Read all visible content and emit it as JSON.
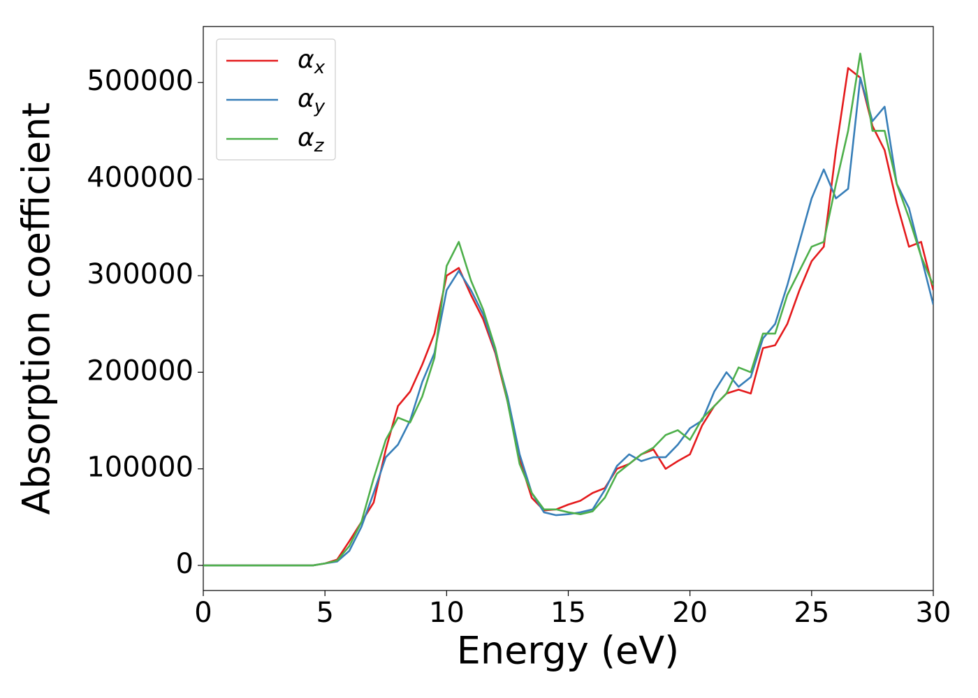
{
  "chart_data": {
    "type": "line",
    "xlabel": "Energy (eV)",
    "ylabel": "Absorption coefficient",
    "x": [
      0,
      0.5,
      1,
      1.5,
      2,
      2.5,
      3,
      3.5,
      4,
      4.5,
      5,
      5.5,
      6,
      6.5,
      7,
      7.5,
      8,
      8.5,
      9,
      9.5,
      10,
      10.5,
      11,
      11.5,
      12,
      12.5,
      13,
      13.5,
      14,
      14.5,
      15,
      15.5,
      16,
      16.5,
      17,
      17.5,
      18,
      18.5,
      19,
      19.5,
      20,
      20.5,
      21,
      21.5,
      22,
      22.5,
      23,
      23.5,
      24,
      24.5,
      25,
      25.5,
      26,
      26.5,
      27,
      27.5,
      28,
      28.5,
      29,
      29.5,
      30
    ],
    "series": [
      {
        "name": "αx",
        "color": "#e41a1c",
        "values": [
          0,
          0,
          0,
          0,
          0,
          0,
          0,
          0,
          0,
          0,
          2000,
          6000,
          25000,
          45000,
          65000,
          120000,
          165000,
          180000,
          208000,
          240000,
          300000,
          308000,
          280000,
          255000,
          220000,
          170000,
          110000,
          70000,
          57000,
          58000,
          63000,
          67000,
          75000,
          80000,
          100000,
          105000,
          115000,
          120000,
          100000,
          108000,
          115000,
          145000,
          165000,
          178000,
          182000,
          178000,
          225000,
          228000,
          250000,
          285000,
          315000,
          330000,
          430000,
          515000,
          505000,
          455000,
          430000,
          375000,
          330000,
          335000,
          285000
        ]
      },
      {
        "name": "αy",
        "color": "#377eb8",
        "values": [
          0,
          0,
          0,
          0,
          0,
          0,
          0,
          0,
          0,
          0,
          2000,
          4000,
          15000,
          40000,
          75000,
          112000,
          125000,
          150000,
          190000,
          220000,
          285000,
          305000,
          285000,
          260000,
          222000,
          175000,
          115000,
          75000,
          55000,
          52000,
          53000,
          55000,
          58000,
          78000,
          103000,
          115000,
          108000,
          112000,
          112000,
          125000,
          142000,
          150000,
          180000,
          200000,
          185000,
          195000,
          235000,
          250000,
          290000,
          335000,
          380000,
          410000,
          380000,
          390000,
          505000,
          460000,
          475000,
          395000,
          370000,
          320000,
          270000
        ]
      },
      {
        "name": "αz",
        "color": "#4daf4a",
        "values": [
          0,
          0,
          0,
          0,
          0,
          0,
          0,
          0,
          0,
          0,
          2000,
          5000,
          20000,
          45000,
          90000,
          130000,
          153000,
          148000,
          175000,
          215000,
          310000,
          335000,
          295000,
          265000,
          225000,
          170000,
          105000,
          75000,
          58000,
          58000,
          55000,
          53000,
          56000,
          70000,
          95000,
          105000,
          115000,
          122000,
          135000,
          140000,
          130000,
          152000,
          165000,
          178000,
          205000,
          200000,
          240000,
          240000,
          280000,
          305000,
          330000,
          335000,
          395000,
          450000,
          530000,
          450000,
          450000,
          395000,
          360000,
          320000,
          290000
        ]
      }
    ],
    "xlim": [
      0,
      30
    ],
    "xticks": [
      0,
      5,
      10,
      15,
      20,
      25,
      30
    ],
    "ylim": [
      -26000,
      558000
    ],
    "yticks": [
      0,
      100000,
      200000,
      300000,
      400000,
      500000
    ],
    "grid": false,
    "legend": "upper left"
  }
}
